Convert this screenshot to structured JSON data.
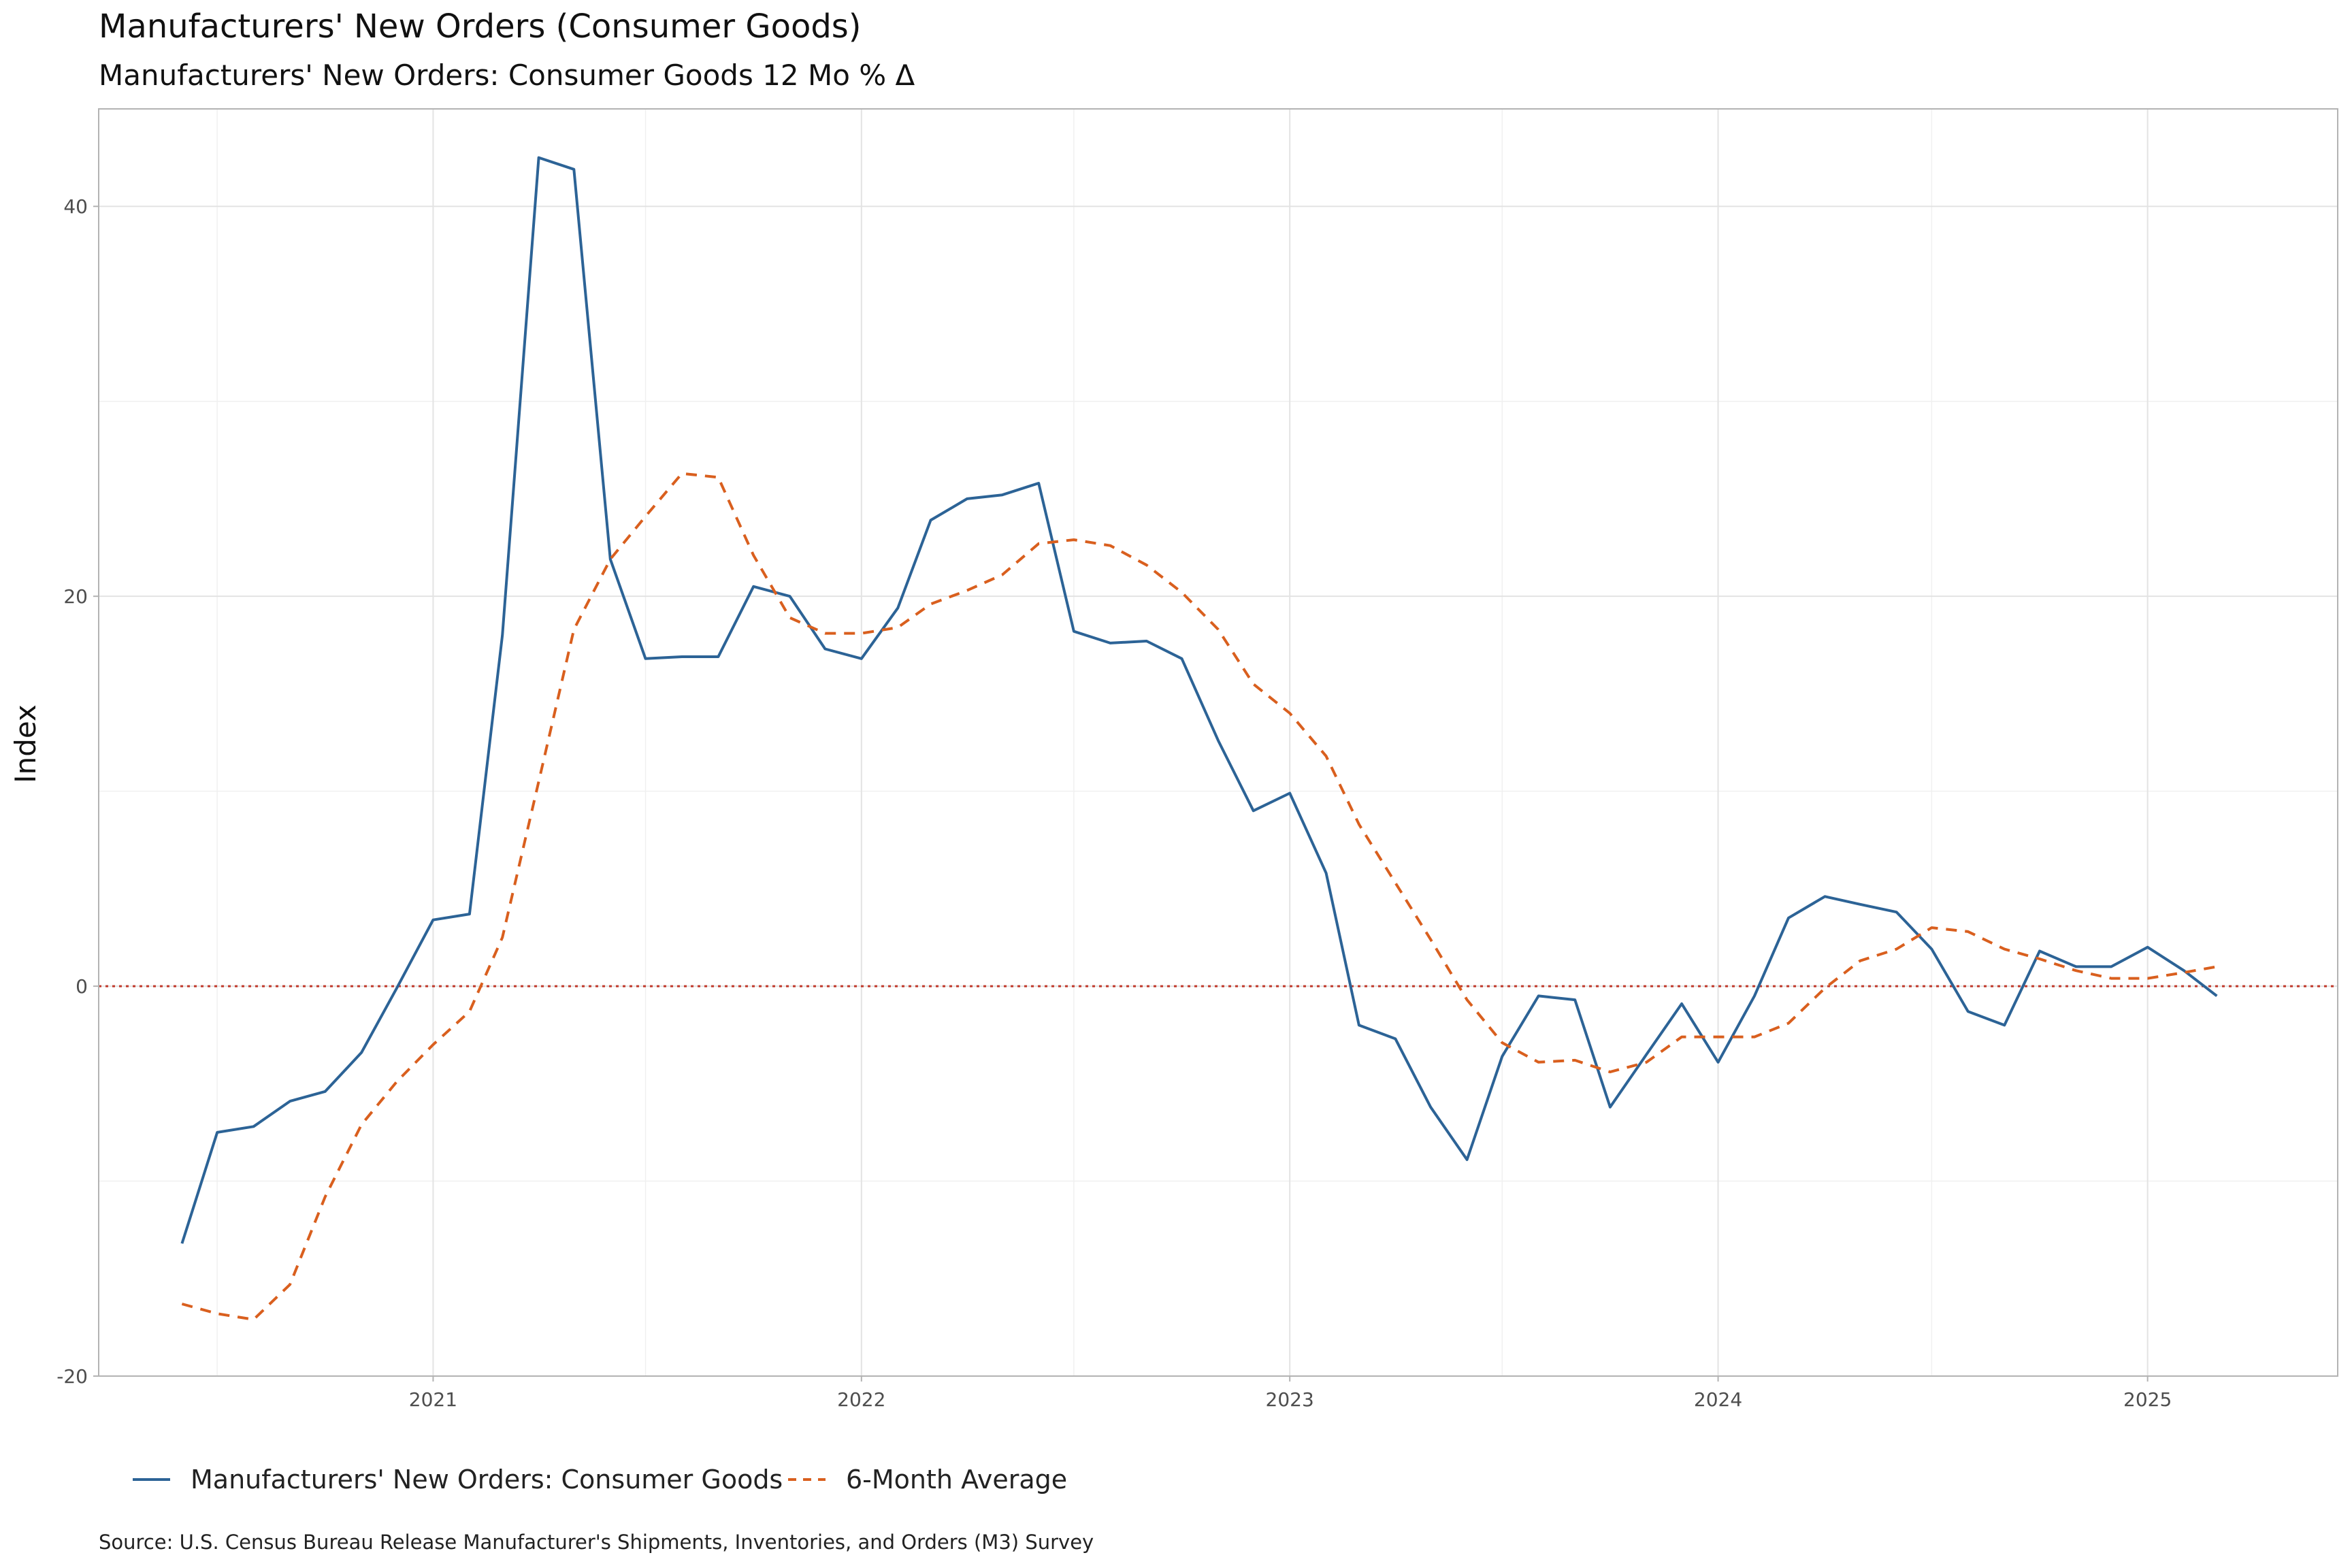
{
  "chart_data": {
    "type": "line",
    "title": "Manufacturers' New Orders (Consumer Goods)",
    "subtitle": "Manufacturers' New Orders: Consumer Goods 12 Mo % Δ",
    "ylabel": "Index",
    "xlabel": "",
    "caption": "Source: U.S. Census Bureau Release Manufacturer's Shipments, Inventories, and Orders (M3) Survey",
    "ylim": [
      -20,
      45
    ],
    "yticks": [
      -20,
      0,
      20,
      40
    ],
    "y_minor_ticks": [
      -10,
      10,
      30
    ],
    "xlim": [
      "2020-03-22",
      "2025-06-12"
    ],
    "xticks": [
      {
        "date": "2021-01-01",
        "label": "2021"
      },
      {
        "date": "2022-01-01",
        "label": "2022"
      },
      {
        "date": "2023-01-01",
        "label": "2023"
      },
      {
        "date": "2024-01-01",
        "label": "2024"
      },
      {
        "date": "2025-01-01",
        "label": "2025"
      }
    ],
    "x_minor_ticks": [
      "2020-07-01",
      "2021-07-01",
      "2022-07-01",
      "2023-07-01",
      "2024-07-01"
    ],
    "reference_line": {
      "y": 0,
      "color": "#c0392b",
      "style": "dotted"
    },
    "grid": true,
    "legend": "bottom",
    "dates": [
      "2020-06-01",
      "2020-07-01",
      "2020-08-01",
      "2020-09-01",
      "2020-10-01",
      "2020-11-01",
      "2020-12-01",
      "2021-01-01",
      "2021-02-01",
      "2021-03-01",
      "2021-04-01",
      "2021-05-01",
      "2021-06-01",
      "2021-07-01",
      "2021-08-01",
      "2021-09-01",
      "2021-10-01",
      "2021-11-01",
      "2021-12-01",
      "2022-01-01",
      "2022-02-01",
      "2022-03-01",
      "2022-04-01",
      "2022-05-01",
      "2022-06-01",
      "2022-07-01",
      "2022-08-01",
      "2022-09-01",
      "2022-10-01",
      "2022-11-01",
      "2022-12-01",
      "2023-01-01",
      "2023-02-01",
      "2023-03-01",
      "2023-04-01",
      "2023-05-01",
      "2023-06-01",
      "2023-07-01",
      "2023-08-01",
      "2023-09-01",
      "2023-10-01",
      "2023-11-01",
      "2023-12-01",
      "2024-01-01",
      "2024-02-01",
      "2024-03-01",
      "2024-04-01",
      "2024-05-01",
      "2024-06-01",
      "2024-07-01",
      "2024-08-01",
      "2024-09-01",
      "2024-10-01",
      "2024-11-01",
      "2024-12-01",
      "2025-01-01",
      "2025-02-01",
      "2025-03-01"
    ],
    "series": [
      {
        "name": "Manufacturers' New Orders: Consumer Goods",
        "color": "#2c6396",
        "dash": "solid",
        "values": [
          -13.2,
          -7.5,
          -7.2,
          -5.9,
          -5.4,
          -3.4,
          -0.1,
          3.4,
          3.7,
          18.0,
          42.5,
          41.9,
          21.9,
          16.8,
          16.9,
          16.9,
          20.5,
          20.0,
          17.3,
          16.8,
          19.4,
          23.9,
          25.0,
          25.2,
          25.8,
          18.2,
          17.6,
          17.7,
          16.8,
          12.6,
          9.0,
          9.9,
          5.8,
          -2.0,
          -2.7,
          -6.2,
          -8.9,
          -3.6,
          -0.5,
          -0.7,
          -6.2,
          -3.5,
          -0.9,
          -3.9,
          -0.5,
          3.5,
          4.6,
          4.2,
          3.8,
          1.9,
          -1.3,
          -2.0,
          1.8,
          1.0,
          1.0,
          2.0,
          0.8,
          -0.5
        ]
      },
      {
        "name": "6-Month Average",
        "color": "#d95f1e",
        "dash": "dashed",
        "values": [
          -16.3,
          -16.8,
          -17.1,
          -15.3,
          -10.8,
          -7.1,
          -4.9,
          -3.0,
          -1.3,
          2.5,
          10.5,
          18.3,
          21.9,
          24.1,
          26.3,
          26.1,
          22.1,
          18.9,
          18.1,
          18.1,
          18.4,
          19.6,
          20.3,
          21.1,
          22.7,
          22.9,
          22.6,
          21.6,
          20.2,
          18.3,
          15.5,
          14.0,
          11.8,
          8.3,
          5.3,
          2.4,
          -0.7,
          -2.9,
          -3.9,
          -3.8,
          -4.4,
          -3.9,
          -2.6,
          -2.6,
          -2.6,
          -1.9,
          -0.1,
          1.3,
          1.9,
          3.0,
          2.8,
          1.9,
          1.4,
          0.8,
          0.4,
          0.4,
          0.7,
          1.0
        ]
      }
    ]
  }
}
